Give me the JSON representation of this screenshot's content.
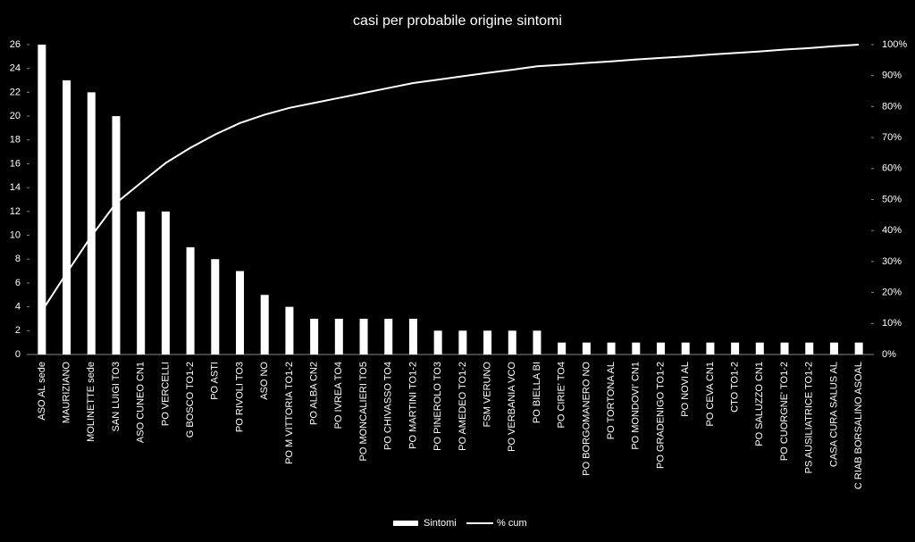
{
  "chart_data": {
    "type": "bar",
    "title": "casi per probabile origine sintomi",
    "categories": [
      "ASO AL sede",
      "MAURIZIANO",
      "MOLINETTE sede",
      "SAN LUIGI TO3",
      "ASO CUNEO CN1",
      "PO VERCELLI",
      "G BOSCO TO1-2",
      "PO ASTI",
      "PO RIVOLI TO3",
      "ASO NO",
      "PO M VITTORIA TO1-2",
      "PO ALBA CN2",
      "PO IVREA TO4",
      "PO MONCALIERI TO5",
      "PO CHIVASSO TO4",
      "PO MARTINI TO1-2",
      "PO PINEROLO TO3",
      "PO AMEDEO TO1-2",
      "FSM VERUNO",
      "PO VERBANIA VCO",
      "PO BIELLA BI",
      "PO CIRIE' TO4",
      "PO BORGOMANERO NO",
      "PO TORTONA AL",
      "PO MONDOVI' CN1",
      "PO GRADENIGO TO1-2",
      "PO NOVI AL",
      "PO CEVA CN1",
      "CTO TO1-2",
      "PO SALUZZO CN1",
      "PO CUORGNE' TO1-2",
      "PS AUSILIATRICE TO1-2",
      "CASA CURA SALUS AL",
      "C RIAB BORSALINO ASOAL"
    ],
    "series": [
      {
        "name": "Sintomi",
        "color": "#ffffff",
        "values": [
          26,
          23,
          22,
          20,
          12,
          12,
          9,
          8,
          7,
          5,
          4,
          3,
          3,
          3,
          3,
          3,
          2,
          2,
          2,
          2,
          2,
          1,
          1,
          1,
          1,
          1,
          1,
          1,
          1,
          1,
          1,
          1,
          1,
          1
        ]
      },
      {
        "name": "% cum",
        "color": "#ffffff",
        "type": "line",
        "axis": "y2",
        "values": [
          14.0,
          26.3,
          38.2,
          48.9,
          55.4,
          61.8,
          66.7,
          71.0,
          74.7,
          77.4,
          79.6,
          81.2,
          82.8,
          84.4,
          86.0,
          87.6,
          88.7,
          89.8,
          90.9,
          91.9,
          93.0,
          93.5,
          94.1,
          94.6,
          95.2,
          95.7,
          96.2,
          96.8,
          97.3,
          97.8,
          98.4,
          98.9,
          99.5,
          100
        ]
      }
    ],
    "ylim": [
      0,
      26
    ],
    "yticks": [
      0,
      2,
      4,
      6,
      8,
      10,
      12,
      14,
      16,
      18,
      20,
      22,
      24,
      26
    ],
    "y2lim": [
      0,
      100
    ],
    "y2ticks": [
      {
        "value": 0,
        "label": "0%"
      },
      {
        "value": 10,
        "label": "10%"
      },
      {
        "value": 20,
        "label": "20%"
      },
      {
        "value": 30,
        "label": "30%"
      },
      {
        "value": 40,
        "label": "40%"
      },
      {
        "value": 50,
        "label": "50%"
      },
      {
        "value": 60,
        "label": "60%"
      },
      {
        "value": 70,
        "label": "70%"
      },
      {
        "value": 80,
        "label": "80%"
      },
      {
        "value": 90,
        "label": "90%"
      },
      {
        "value": 100,
        "label": "100%"
      }
    ],
    "grid": false,
    "legend": "bottom"
  }
}
